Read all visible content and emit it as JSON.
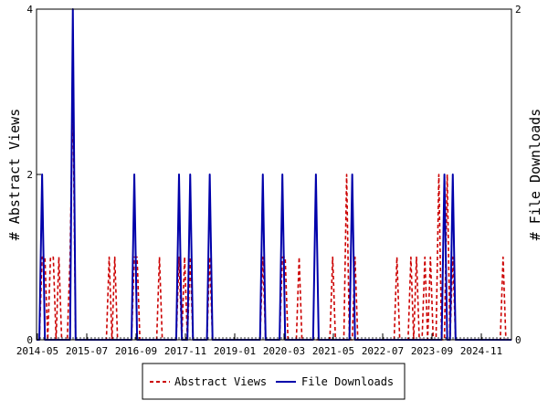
{
  "chart_data": {
    "type": "line",
    "x_ticks": [
      "2014-05",
      "2015-07",
      "2016-09",
      "2017-11",
      "2019-01",
      "2020-03",
      "2021-05",
      "2022-07",
      "2023-09",
      "2024-11"
    ],
    "y_left": {
      "label": "# Abstract Views",
      "ticks": [
        "0",
        "2",
        "4"
      ],
      "lim": [
        0,
        4
      ]
    },
    "y_right": {
      "label": "# File Downloads",
      "ticks": [
        "0",
        "2"
      ],
      "lim": [
        0,
        2
      ]
    },
    "legend_position": "bottom-center",
    "grid": false,
    "series": [
      {
        "name": "Abstract Views",
        "axis": "left",
        "color": "#cc0000",
        "dash": true,
        "values": [
          0,
          0,
          1,
          1,
          0,
          1,
          1,
          0,
          1,
          0,
          0,
          0,
          1,
          3,
          0,
          0,
          0,
          0,
          0,
          0,
          0,
          0,
          0,
          0,
          0,
          0,
          1,
          0,
          1,
          0,
          0,
          0,
          0,
          0,
          0,
          1,
          1,
          0,
          0,
          0,
          0,
          0,
          0,
          0,
          1,
          0,
          0,
          0,
          0,
          0,
          0,
          1,
          0,
          1,
          0,
          1,
          0,
          0,
          0,
          0,
          0,
          0,
          1,
          0,
          0,
          0,
          0,
          0,
          0,
          0,
          0,
          0,
          0,
          0,
          0,
          0,
          0,
          0,
          0,
          0,
          0,
          1,
          0,
          0,
          0,
          0,
          0,
          0,
          1,
          1,
          0,
          0,
          0,
          0,
          1,
          0,
          0,
          0,
          0,
          0,
          0,
          0,
          0,
          0,
          0,
          0,
          1,
          0,
          0,
          0,
          0,
          2,
          0,
          0,
          1,
          0,
          0,
          0,
          0,
          0,
          0,
          0,
          0,
          0,
          0,
          0,
          0,
          0,
          0,
          1,
          0,
          0,
          0,
          0,
          1,
          0,
          1,
          0,
          0,
          1,
          0,
          1,
          0,
          0,
          2,
          0,
          0,
          2,
          0,
          1,
          0,
          0,
          0,
          0,
          0,
          0,
          0,
          0,
          0,
          0,
          0,
          0,
          0,
          0,
          0,
          0,
          0,
          1,
          0,
          0,
          0
        ]
      },
      {
        "name": "File Downloads",
        "axis": "right",
        "color": "#0000aa",
        "dash": false,
        "values": [
          0,
          0,
          1,
          0,
          0,
          0,
          0,
          0,
          0,
          0,
          0,
          0,
          0,
          2,
          0,
          0,
          0,
          0,
          0,
          0,
          0,
          0,
          0,
          0,
          0,
          0,
          0,
          0,
          0,
          0,
          0,
          0,
          0,
          0,
          0,
          1,
          0,
          0,
          0,
          0,
          0,
          0,
          0,
          0,
          0,
          0,
          0,
          0,
          0,
          0,
          0,
          1,
          0,
          0,
          0,
          1,
          0,
          0,
          0,
          0,
          0,
          0,
          1,
          0,
          0,
          0,
          0,
          0,
          0,
          0,
          0,
          0,
          0,
          0,
          0,
          0,
          0,
          0,
          0,
          0,
          0,
          1,
          0,
          0,
          0,
          0,
          0,
          0,
          1,
          0,
          0,
          0,
          0,
          0,
          0,
          0,
          0,
          0,
          0,
          0,
          1,
          0,
          0,
          0,
          0,
          0,
          0,
          0,
          0,
          0,
          0,
          0,
          0,
          1,
          0,
          0,
          0,
          0,
          0,
          0,
          0,
          0,
          0,
          0,
          0,
          0,
          0,
          0,
          0,
          0,
          0,
          0,
          0,
          0,
          0,
          0,
          0,
          0,
          0,
          0,
          0,
          0,
          0,
          0,
          0,
          0,
          1,
          0,
          0,
          1,
          0,
          0,
          0,
          0,
          0,
          0,
          0,
          0,
          0,
          0,
          0,
          0,
          0,
          0,
          0,
          0,
          0,
          0,
          0,
          0,
          0
        ]
      }
    ]
  }
}
